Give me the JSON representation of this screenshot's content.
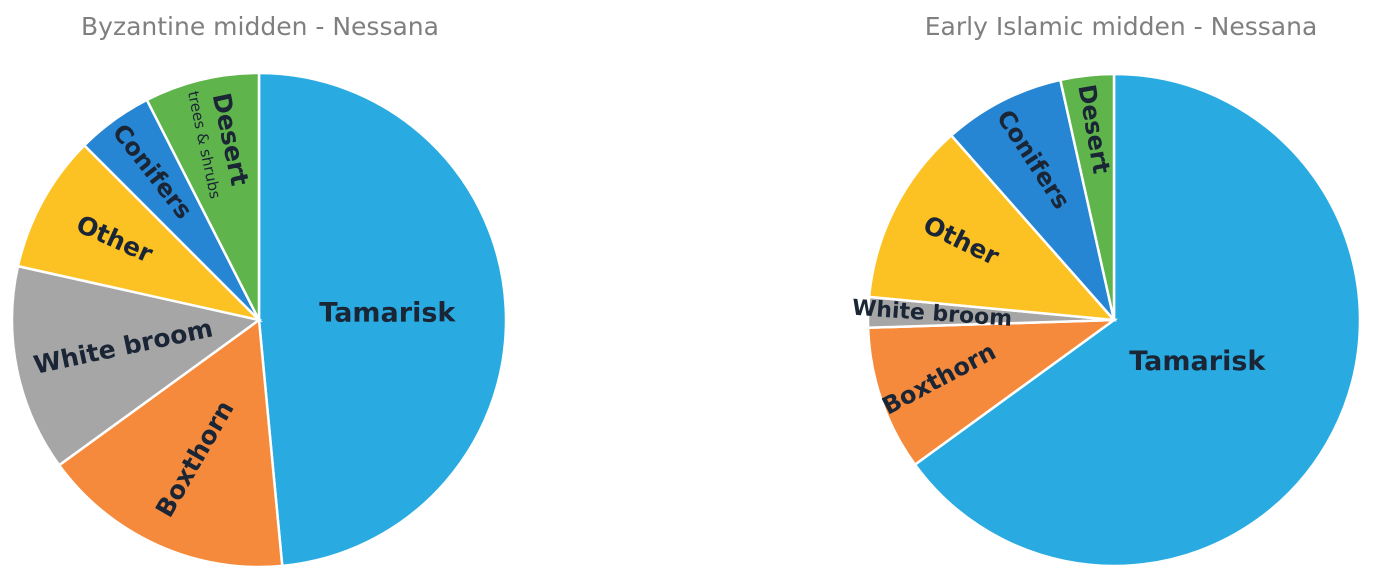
{
  "chart_data": [
    {
      "type": "pie",
      "title": "Byzantine midden - Nessana",
      "slices": [
        {
          "label": "Tamarisk",
          "sublabel": "",
          "value": 48.5,
          "color": "#29abe2"
        },
        {
          "label": "Boxthorn",
          "sublabel": "",
          "value": 16.5,
          "color": "#f58a3c"
        },
        {
          "label": "White broom",
          "sublabel": "",
          "value": 13.5,
          "color": "#a6a6a6"
        },
        {
          "label": "Other",
          "sublabel": "",
          "value": 9.0,
          "color": "#fcc223"
        },
        {
          "label": "Conifers",
          "sublabel": "",
          "value": 5.0,
          "color": "#2686d4"
        },
        {
          "label": "Desert",
          "sublabel": "trees & shrubs",
          "value": 7.5,
          "color": "#5fb54b"
        }
      ]
    },
    {
      "type": "pie",
      "title": "Early Islamic midden - Nessana",
      "slices": [
        {
          "label": "Tamarisk",
          "sublabel": "",
          "value": 65.0,
          "color": "#29abe2"
        },
        {
          "label": "Boxthorn",
          "sublabel": "",
          "value": 9.5,
          "color": "#f58a3c"
        },
        {
          "label": "White broom",
          "sublabel": "",
          "value": 2.0,
          "color": "#a6a6a6"
        },
        {
          "label": "Other",
          "sublabel": "",
          "value": 12.0,
          "color": "#fcc223"
        },
        {
          "label": "Conifers",
          "sublabel": "",
          "value": 8.0,
          "color": "#2686d4"
        },
        {
          "label": "Desert",
          "sublabel": "",
          "value": 3.5,
          "color": "#5fb54b"
        }
      ]
    }
  ]
}
